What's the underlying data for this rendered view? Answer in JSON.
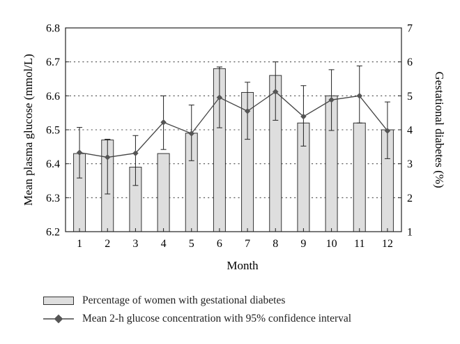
{
  "chart_data": {
    "type": "bar",
    "xlabel": "Month",
    "categories": [
      "1",
      "2",
      "3",
      "4",
      "5",
      "6",
      "7",
      "8",
      "9",
      "10",
      "11",
      "12"
    ],
    "left_axis": {
      "label": "Mean plasma glucose (mmol/L)",
      "ylim": [
        6.2,
        6.8
      ],
      "ticks": [
        "6.2",
        "6.3",
        "6.4",
        "6.5",
        "6.6",
        "6.7",
        "6.8"
      ]
    },
    "right_axis": {
      "label": "Gestational diabetes (%)",
      "ylim": [
        1,
        7
      ],
      "ticks": [
        "1",
        "2",
        "3",
        "4",
        "5",
        "6",
        "7"
      ]
    },
    "grid": "dotted horizontal",
    "legend_position": "bottom",
    "series": [
      {
        "name": "Percentage of women with gestational diabetes",
        "type": "bar",
        "axis": "right",
        "values": [
          3.3,
          3.7,
          2.9,
          3.3,
          3.9,
          5.8,
          5.1,
          5.6,
          4.2,
          5.0,
          4.2,
          4.0
        ],
        "error_high": [
          null,
          3.72,
          null,
          null,
          null,
          5.85,
          null,
          null,
          null,
          null,
          null,
          null
        ],
        "color": "#dedede"
      },
      {
        "name": "Mean 2-h glucose concentration with 95% confidence interval",
        "type": "line",
        "axis": "left",
        "values": [
          6.433,
          6.419,
          6.431,
          6.522,
          6.489,
          6.595,
          6.555,
          6.612,
          6.539,
          6.588,
          6.6,
          6.497
        ],
        "ci_low": [
          6.358,
          6.311,
          6.336,
          6.442,
          6.409,
          6.506,
          6.472,
          6.528,
          6.452,
          6.498,
          6.52,
          6.415
        ],
        "ci_high": [
          6.507,
          6.472,
          6.483,
          6.6,
          6.573,
          6.685,
          6.64,
          6.7,
          6.63,
          6.677,
          6.688,
          6.582
        ],
        "color": "#555555"
      }
    ]
  }
}
